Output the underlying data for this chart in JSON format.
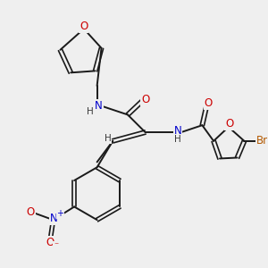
{
  "bg_color": "#efefef",
  "bond_color": "#1a1a1a",
  "atom_colors": {
    "O": "#cc0000",
    "N": "#0000cc",
    "Br": "#b35900",
    "H": "#3a3a3a",
    "C": "#1a1a1a"
  },
  "figsize": [
    3.0,
    3.0
  ],
  "dpi": 100
}
